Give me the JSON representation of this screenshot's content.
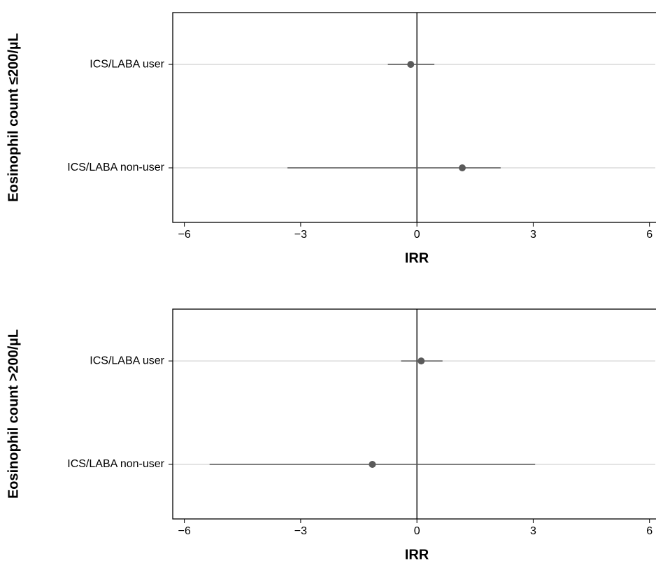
{
  "chart_data": [
    {
      "type": "forest",
      "ylabel": "Eosinophil count ≤200/µL",
      "xlabel": "IRR",
      "categories": [
        "ICS/LABA user",
        "ICS/LABA non-user"
      ],
      "values": [
        -0.16,
        1.17
      ],
      "lower": [
        -0.75,
        -3.34
      ],
      "upper": [
        0.45,
        2.16
      ],
      "xlim": [
        -6.3,
        6.15
      ],
      "xticks": [
        {
          "value": -6,
          "label": "−6"
        },
        {
          "value": -3,
          "label": "−3"
        },
        0,
        3,
        6
      ],
      "reference_line": 0,
      "grid": true,
      "color": "#5a5a5a"
    },
    {
      "type": "forest",
      "ylabel": "Eosinophil count >200/µL",
      "xlabel": "IRR",
      "categories": [
        "ICS/LABA user",
        "ICS/LABA non-user"
      ],
      "values": [
        0.11,
        -1.15
      ],
      "lower": [
        -0.41,
        -5.35
      ],
      "upper": [
        0.66,
        3.05
      ],
      "xlim": [
        -6.3,
        6.15
      ],
      "xticks": [
        {
          "value": -6,
          "label": "−6"
        },
        {
          "value": -3,
          "label": "−3"
        },
        0,
        3,
        6
      ],
      "reference_line": 0,
      "grid": true,
      "color": "#5a5a5a"
    }
  ]
}
